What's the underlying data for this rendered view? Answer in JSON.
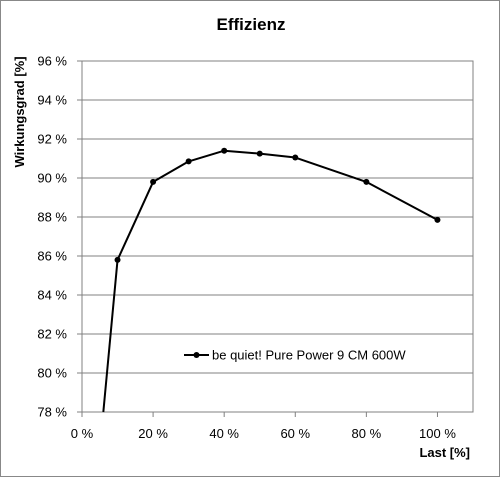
{
  "chart_data": {
    "type": "line",
    "title": "Effizienz",
    "xlabel": "Last [%]",
    "ylabel": "Wirkungsgrad [%]",
    "xlim": [
      0,
      110
    ],
    "ylim": [
      78,
      96
    ],
    "x_ticks": [
      0,
      20,
      40,
      60,
      80,
      100
    ],
    "x_tick_labels": [
      "0 %",
      "20 %",
      "40 %",
      "60 %",
      "80 %",
      "100 %"
    ],
    "y_ticks": [
      78,
      80,
      82,
      84,
      86,
      88,
      90,
      92,
      94,
      96
    ],
    "y_tick_labels": [
      "78 %",
      "80 %",
      "82 %",
      "84 %",
      "86 %",
      "88 %",
      "90 %",
      "92 %",
      "94 %",
      "96 %"
    ],
    "grid": "horizontal major",
    "legend_position": "inside lower-right",
    "series": [
      {
        "name": "be quiet! Pure Power 9 CM 600W",
        "color": "#000000",
        "x": [
          10,
          20,
          30,
          40,
          50,
          60,
          80,
          100
        ],
        "y": [
          85.8,
          89.8,
          90.85,
          91.4,
          91.25,
          91.05,
          89.8,
          87.85
        ],
        "line_start": {
          "x": 6,
          "y": 78
        }
      }
    ]
  }
}
